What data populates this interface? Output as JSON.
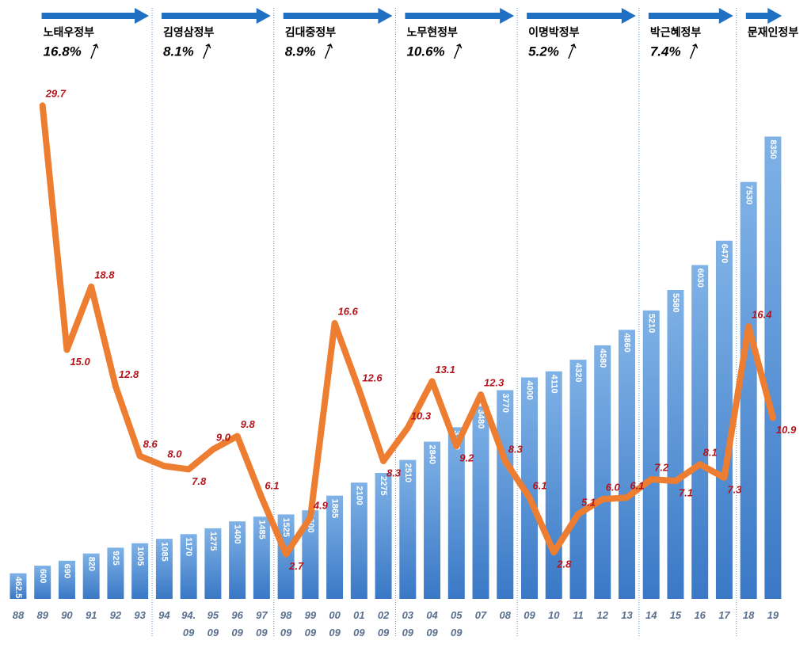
{
  "chart_data": {
    "type": "bar",
    "categories": [
      "88",
      "89",
      "90",
      "91",
      "92",
      "93",
      "94",
      "94.\n09",
      "95\n09",
      "96\n09",
      "97\n09",
      "98\n09",
      "99\n09",
      "00\n09",
      "01\n09",
      "02\n09",
      "03\n09",
      "04\n09",
      "05\n09",
      "07",
      "08",
      "09",
      "10",
      "11",
      "12",
      "13",
      "14",
      "15",
      "16",
      "17",
      "18",
      "19"
    ],
    "series": [
      {
        "type": "bar",
        "color": "#4a8ad4",
        "values": [
          462.5,
          600,
          690,
          820,
          925,
          1005,
          1085,
          1170,
          1275,
          1400,
          1485,
          1525,
          1600,
          1865,
          2100,
          2275,
          2510,
          2840,
          3100,
          3480,
          3770,
          4000,
          4110,
          4320,
          4580,
          4860,
          5210,
          5580,
          6030,
          6470,
          7530,
          8350
        ]
      },
      {
        "type": "line",
        "axis": "y2",
        "color": "#ed7d31",
        "values": [
          null,
          29.7,
          15.0,
          18.8,
          12.8,
          8.6,
          8.0,
          7.8,
          9.0,
          9.8,
          6.1,
          2.7,
          4.9,
          16.6,
          12.6,
          8.3,
          10.3,
          13.1,
          9.2,
          12.3,
          8.3,
          6.1,
          2.8,
          5.1,
          6.0,
          6.1,
          7.2,
          7.1,
          8.1,
          7.3,
          16.4,
          10.9
        ],
        "value_labels": [
          null,
          "29.7",
          "15.0",
          "18.8",
          "12.8",
          "8.6",
          "8.0",
          "7.8",
          "9.0",
          "9.8",
          "6.1",
          "2.7",
          "4.9",
          "16.6",
          "12.6",
          "8.3",
          "10.3",
          "13.1",
          "9.2",
          "12.3",
          "8.3",
          "6.1",
          "2.8",
          "5.1",
          "6.0",
          "6.1",
          "7.2",
          "7.1",
          "8.1",
          "7.3",
          "16.4",
          "10.9"
        ]
      }
    ],
    "ylim": [
      0,
      9000
    ],
    "y2lim": [
      0,
      30
    ],
    "periods": [
      {
        "name": "노태우정부",
        "rate": "16.8%",
        "first": "88",
        "last": "93"
      },
      {
        "name": "김영삼정부",
        "rate": "8.1%",
        "first": "94",
        "last": "97\n09"
      },
      {
        "name": "김대중정부",
        "rate": "8.9%",
        "first": "98\n09",
        "last": "02\n09"
      },
      {
        "name": "노무현정부",
        "rate": "10.6%",
        "first": "03\n09",
        "last": "08"
      },
      {
        "name": "이명박정부",
        "rate": "5.2%",
        "first": "09",
        "last": "13"
      },
      {
        "name": "박근혜정부",
        "rate": "7.4%",
        "first": "14",
        "last": "17"
      },
      {
        "name": "문재인정부",
        "first": "18",
        "last": "19"
      }
    ]
  }
}
